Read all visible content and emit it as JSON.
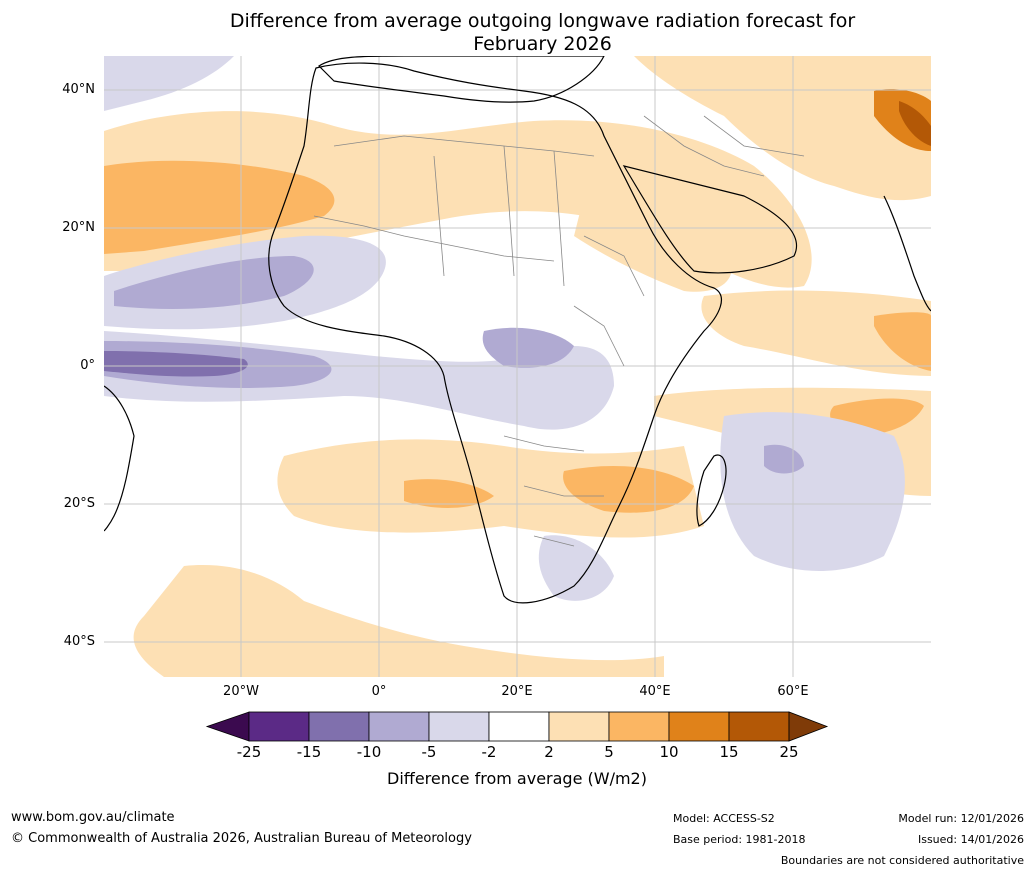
{
  "title_line1": "Difference from average outgoing longwave radiation forecast for",
  "title_line2": "February 2026",
  "map": {
    "lat_labels": [
      "40°N",
      "20°N",
      "0°",
      "20°S",
      "40°S"
    ],
    "lon_labels": [
      "20°W",
      "0°",
      "20°E",
      "40°E",
      "60°E"
    ]
  },
  "colorbar": {
    "ticks": [
      "-25",
      "-15",
      "-10",
      "-5",
      "-2",
      "2",
      "5",
      "10",
      "15",
      "25"
    ],
    "colors": [
      "#3b0a4f",
      "#5b2a86",
      "#8070ad",
      "#b0aad2",
      "#d9d8ea",
      "#ffffff",
      "#fde0b4",
      "#fbb663",
      "#e0821a",
      "#b35806",
      "#7f3b08"
    ],
    "label": "Difference from average (W/m2)"
  },
  "footer": {
    "url": "www.bom.gov.au/climate",
    "copyright": "© Commonwealth of Australia 2026, Australian Bureau of Meteorology",
    "model": "Model: ACCESS-S2",
    "base_period": "Base period: 1981-2018",
    "model_run": "Model run: 12/01/2026",
    "issued": "Issued: 14/01/2026",
    "disclaimer": "Boundaries are not considered authoritative"
  }
}
